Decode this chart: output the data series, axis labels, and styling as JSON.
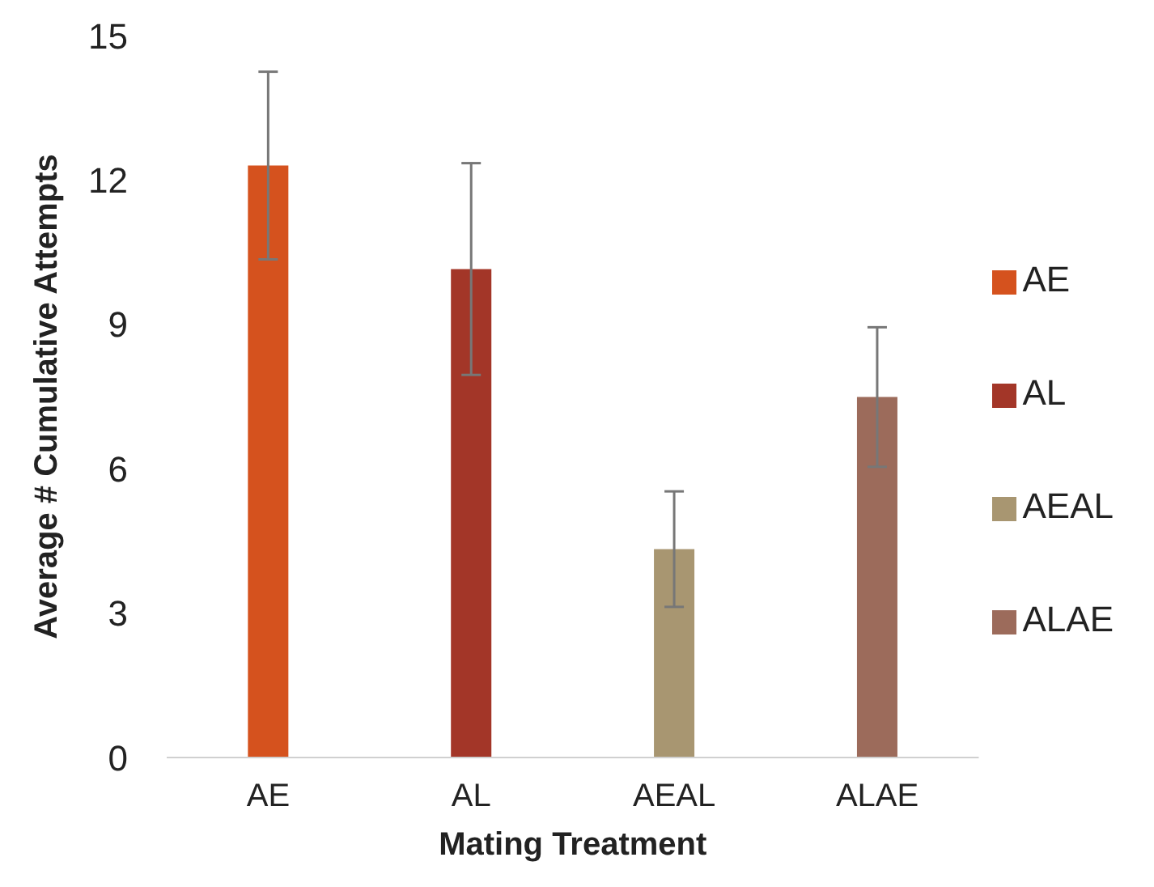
{
  "chart_data": {
    "type": "bar",
    "xlabel": "Mating Treatment",
    "ylabel": "Average # Cumulative Attempts",
    "categories": [
      "AE",
      "AL",
      "AEAL",
      "ALAE"
    ],
    "series": [
      {
        "name": "AE",
        "color": "#d5521e",
        "values": [
          12.3,
          null,
          null,
          null
        ],
        "errors": [
          1.95,
          null,
          null,
          null
        ]
      },
      {
        "name": "AL",
        "color": "#a33628",
        "values": [
          null,
          10.15,
          null,
          null
        ],
        "errors": [
          null,
          2.2,
          null,
          null
        ]
      },
      {
        "name": "AEAL",
        "color": "#a89671",
        "values": [
          null,
          null,
          4.33,
          null
        ],
        "errors": [
          null,
          null,
          1.2,
          null
        ]
      },
      {
        "name": "ALAE",
        "color": "#9c6b5b",
        "values": [
          null,
          null,
          null,
          7.49
        ],
        "errors": [
          null,
          null,
          null,
          1.45
        ]
      }
    ],
    "ylim": [
      0,
      15
    ],
    "yticks": [
      0,
      3,
      6,
      9,
      12,
      15
    ],
    "grid": false,
    "legend": "right"
  }
}
